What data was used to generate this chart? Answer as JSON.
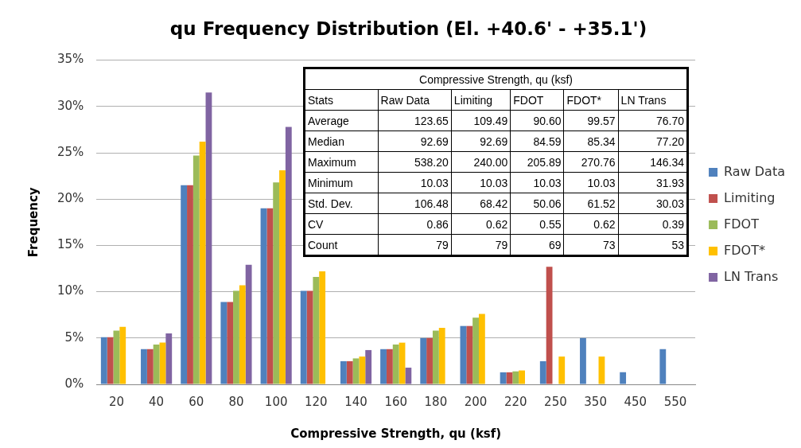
{
  "chart_data": {
    "type": "bar",
    "title": "qu Frequency Distribution (El. +40.6' - +35.1')",
    "xlabel": "Compressive Strength, qu (ksf)",
    "ylabel": "Frequency",
    "categories": [
      "20",
      "40",
      "60",
      "80",
      "100",
      "120",
      "140",
      "160",
      "180",
      "200",
      "220",
      "250",
      "350",
      "450",
      "550"
    ],
    "series": [
      {
        "name": "Raw Data",
        "color": "#4f81bd",
        "values": [
          5.1,
          3.8,
          21.5,
          8.9,
          19.0,
          10.1,
          2.5,
          3.8,
          5.0,
          6.3,
          1.3,
          2.5,
          5.0,
          1.3,
          3.8
        ]
      },
      {
        "name": "Limiting",
        "color": "#c0504d",
        "values": [
          5.1,
          3.8,
          21.5,
          8.9,
          19.0,
          10.1,
          2.5,
          3.8,
          5.0,
          6.3,
          1.3,
          12.7,
          0,
          0,
          0
        ]
      },
      {
        "name": "FDOT",
        "color": "#9bbb59",
        "values": [
          5.8,
          4.3,
          24.7,
          10.1,
          21.8,
          11.6,
          2.8,
          4.3,
          5.8,
          7.2,
          1.4,
          0,
          0,
          0,
          0
        ]
      },
      {
        "name": "FDOT*",
        "color": "#ffc000",
        "values": [
          6.2,
          4.5,
          26.2,
          10.7,
          23.1,
          12.2,
          3.0,
          4.5,
          6.1,
          7.6,
          1.5,
          3.0,
          3.0,
          0,
          0
        ]
      },
      {
        "name": "LN Trans",
        "color": "#8064a2",
        "values": [
          0,
          5.5,
          31.5,
          12.9,
          27.8,
          null,
          3.7,
          1.8,
          0,
          0,
          0,
          0,
          0,
          0,
          0
        ]
      }
    ],
    "ylim": [
      0,
      35
    ],
    "yticks": [
      {
        "value": 0,
        "label": "0%"
      },
      {
        "value": 5,
        "label": "5%"
      },
      {
        "value": 10,
        "label": "10%"
      },
      {
        "value": 15,
        "label": "15%"
      },
      {
        "value": 20,
        "label": "20%"
      },
      {
        "value": 25,
        "label": "25%"
      },
      {
        "value": 30,
        "label": "30%"
      },
      {
        "value": 35,
        "label": "35%"
      }
    ],
    "grid": "y",
    "legend": "right",
    "annotations": [
      "Compressive Strength, qu (ksf)",
      "Stats",
      "Raw Data",
      "Limiting",
      "FDOT",
      "FDOT*",
      "LN Trans",
      "Average",
      "123.65",
      "109.49",
      "90.60",
      "99.57",
      "76.70",
      "Median",
      "92.69",
      "92.69",
      "84.59",
      "85.34",
      "77.20",
      "Maximum",
      "538.20",
      "240.00",
      "205.89",
      "270.76",
      "146.34",
      "Minimum",
      "10.03",
      "10.03",
      "10.03",
      "10.03",
      "31.93",
      "Std. Dev.",
      "106.48",
      "68.42",
      "50.06",
      "61.52",
      "30.03",
      "CV",
      "0.86",
      "0.62",
      "0.55",
      "0.62",
      "0.39",
      "Count",
      "79",
      "79",
      "69",
      "73",
      "53"
    ]
  }
}
